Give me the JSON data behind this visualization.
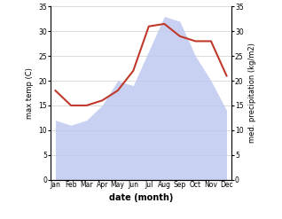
{
  "months": [
    "Jan",
    "Feb",
    "Mar",
    "Apr",
    "May",
    "Jun",
    "Jul",
    "Aug",
    "Sep",
    "Oct",
    "Nov",
    "Dec"
  ],
  "max_temp": [
    12,
    11,
    12,
    15,
    20,
    19,
    26,
    33,
    32,
    25,
    20,
    14
  ],
  "precipitation": [
    18,
    15,
    15,
    16,
    18,
    22,
    31,
    31.5,
    29,
    28,
    28,
    21
  ],
  "temp_color": "#c0392b",
  "precip_fill_color": "#bfc9f0",
  "ylim_left": [
    0,
    35
  ],
  "ylim_right": [
    0,
    35
  ],
  "xlabel": "date (month)",
  "ylabel_left": "max temp (C)",
  "ylabel_right": "med. precipitation (kg/m2)",
  "yticks": [
    0,
    5,
    10,
    15,
    20,
    25,
    30,
    35
  ],
  "tick_fontsize": 5.5,
  "label_fontsize": 6.0,
  "xlabel_fontsize": 7.0
}
